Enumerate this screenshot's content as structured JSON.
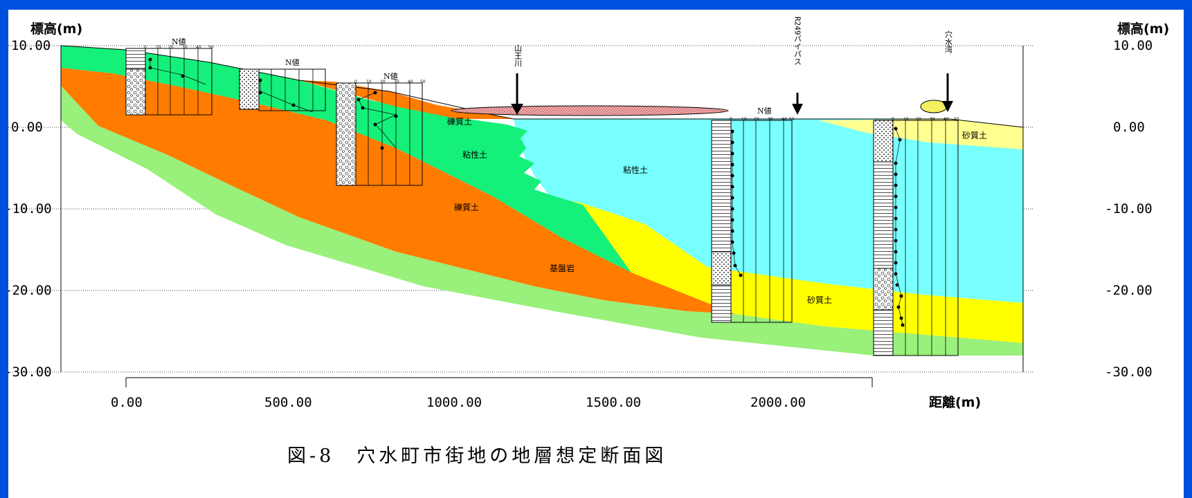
{
  "axes": {
    "y_unit_left": "標高(m)",
    "y_unit_right": "標高(m)",
    "y_ticks": [
      "10.00",
      "0.00",
      "-10.00",
      "-20.00",
      "-30.00"
    ],
    "x_ticks": [
      "0.00",
      "500.00",
      "1000.00",
      "1500.00",
      "2000.00"
    ],
    "x_unit": "距離(m)"
  },
  "layers": {
    "gravel_1": "礫質土",
    "clay_1": "粘性土",
    "gravel_2": "礫質土",
    "clay_main": "粘性土",
    "bedrock": "基盤岩",
    "sand_1": "砂質土",
    "sand_2": "砂質土"
  },
  "annotations": {
    "river": "山王川",
    "bypass": "R249バイパス",
    "bay": "穴水湾"
  },
  "boreholes": {
    "n_value_label": "N値",
    "n_scale": [
      "0",
      "10",
      "20",
      "30",
      "40",
      "50"
    ]
  },
  "colors": {
    "background_frame": "#0050e0",
    "bedrock": "#99f07a",
    "gravel": "#ff7c00",
    "clay_green": "#14f07a",
    "clay_cyan": "#78ffff",
    "sand_yellow": "#ffff00",
    "sand_pale": "#ffff90",
    "river_ellipse": "#f2b0b0",
    "bay_ellipse": "#f2f060"
  },
  "caption": "図-8　穴水町市街地の地層想定断面図"
}
